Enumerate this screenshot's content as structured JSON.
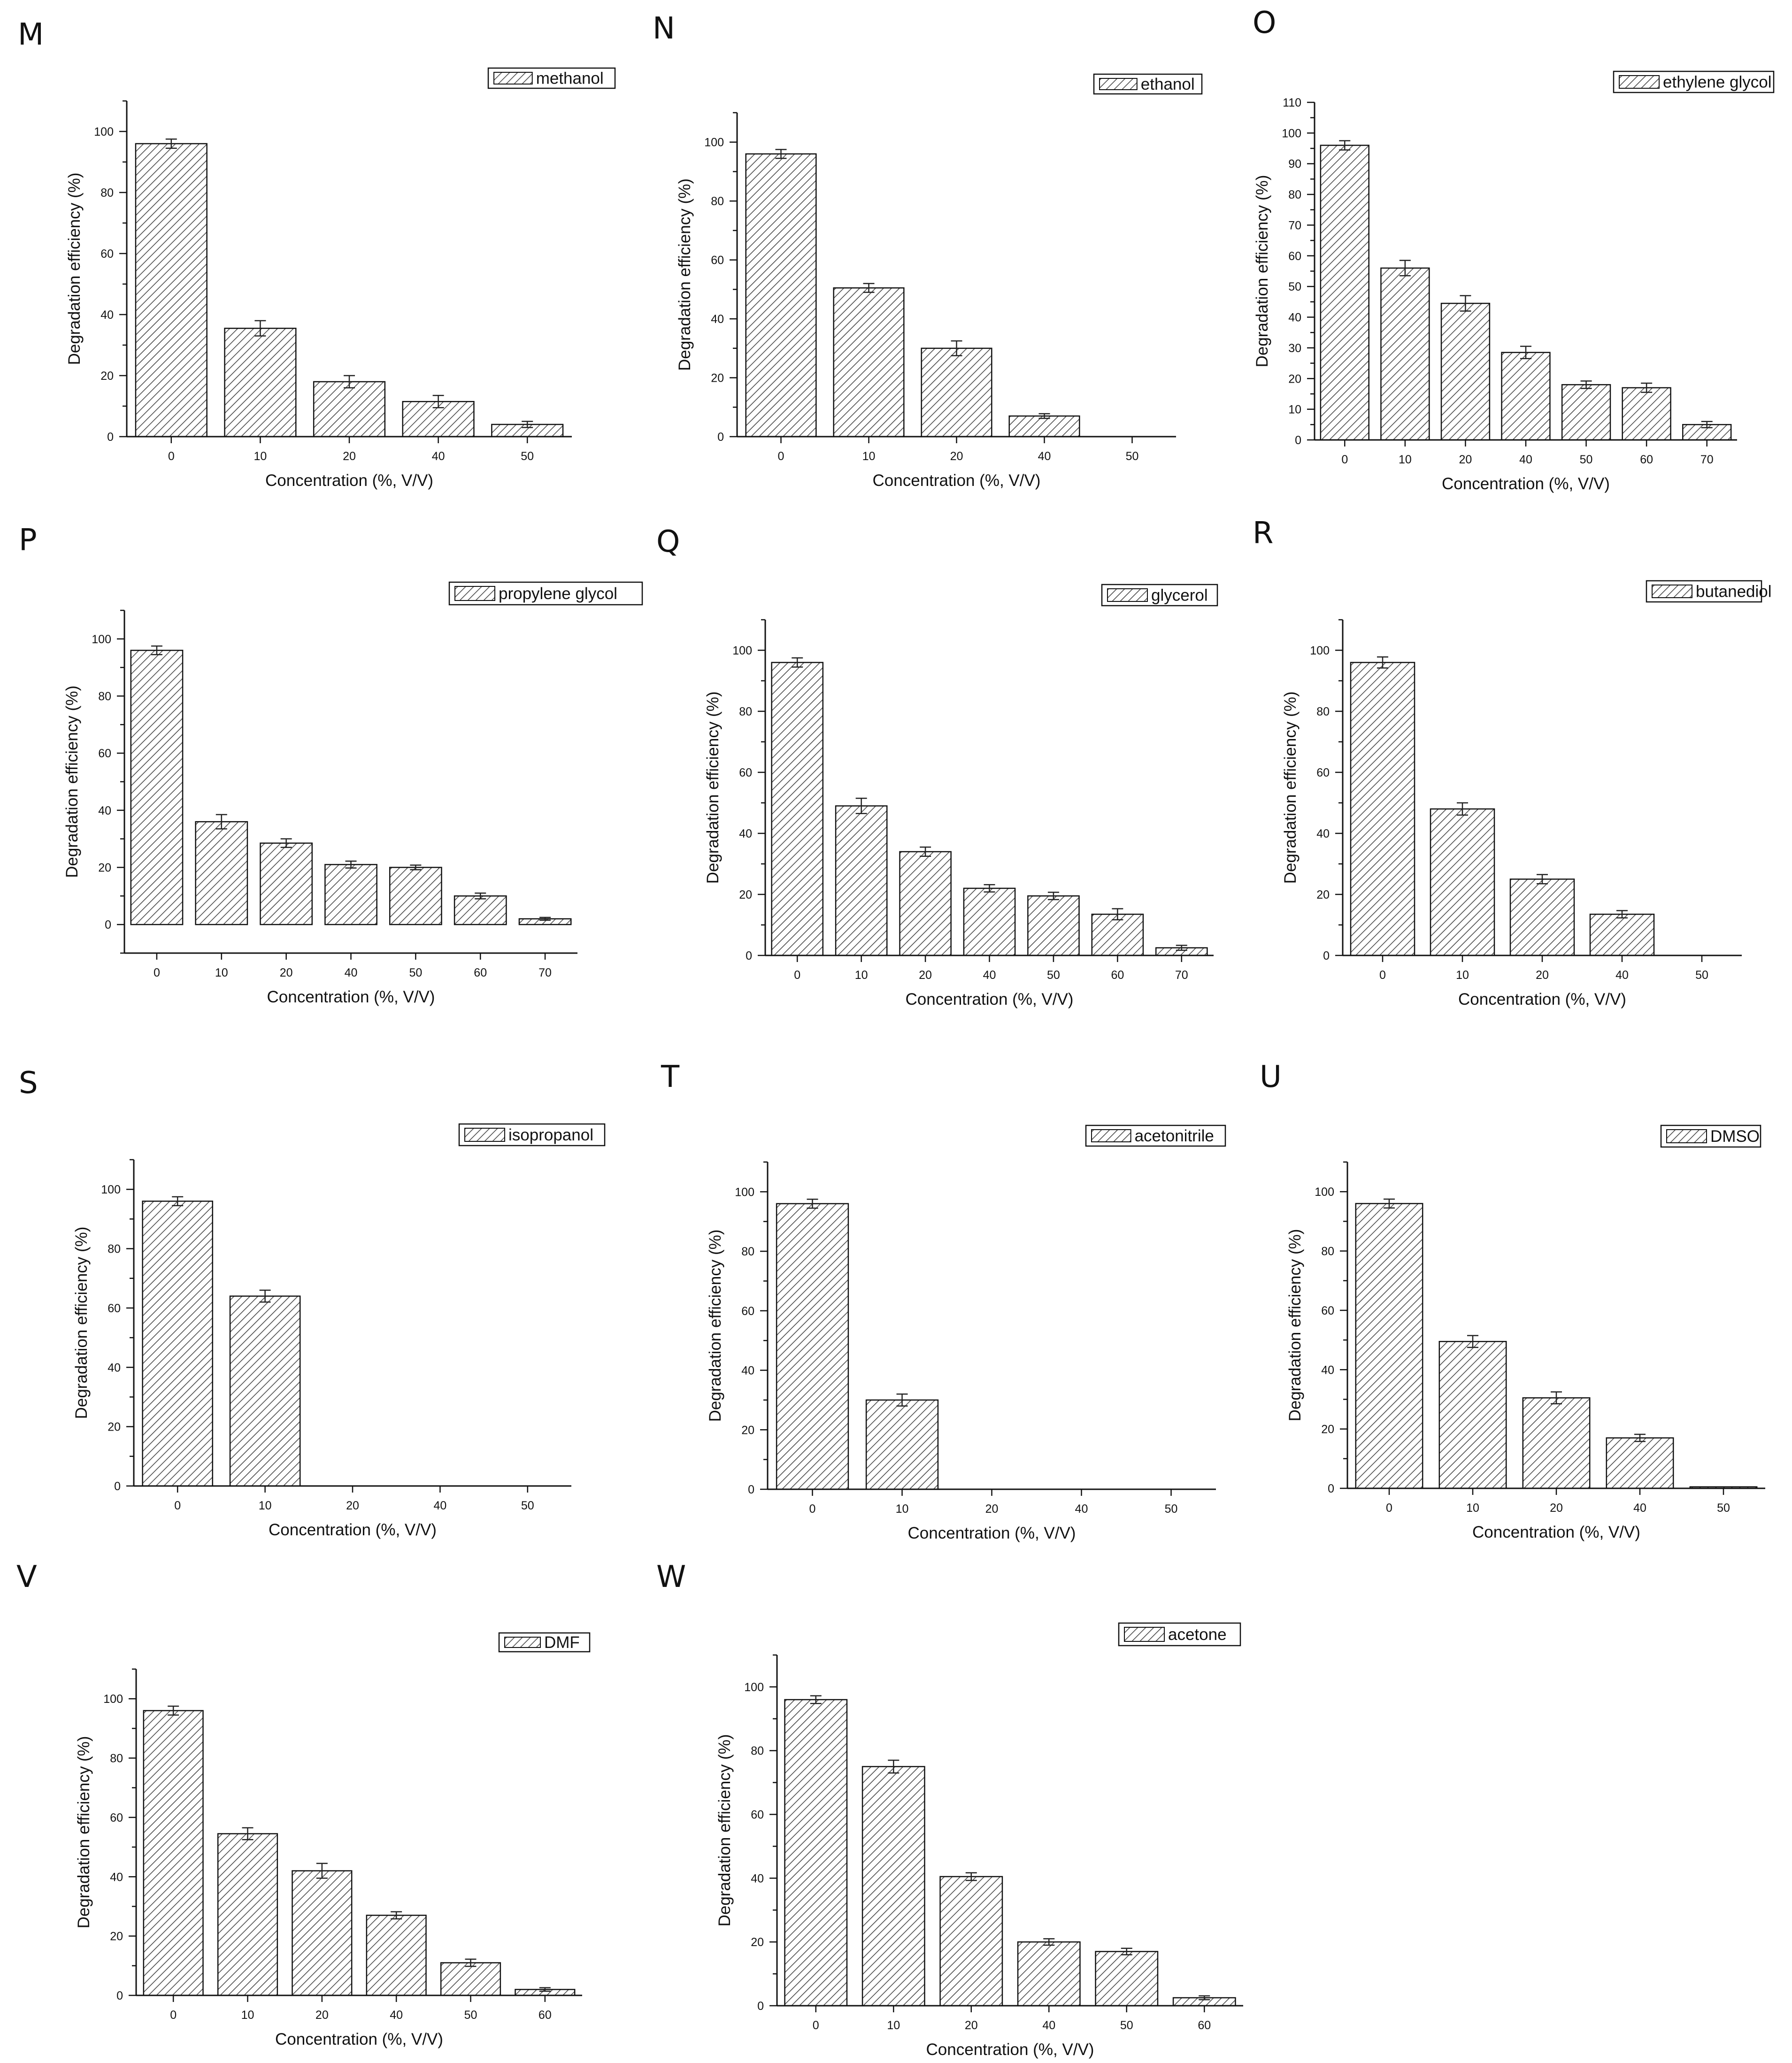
{
  "figure": {
    "description": "Degradation efficiency vs organic solvent concentration, panels M–W"
  },
  "colors": {
    "bar_fill": "#ffffff",
    "hatch": "#444444",
    "axis": "#111111",
    "error_bar": "#222222"
  },
  "chart_data": [
    {
      "panel": "M",
      "type": "bar",
      "legend": "methanol",
      "categories": [
        "0",
        "10",
        "20",
        "40",
        "50"
      ],
      "values": [
        96,
        35.5,
        18,
        11.5,
        4
      ],
      "errors": [
        1.5,
        2.5,
        2,
        2,
        1
      ],
      "xlabel": "Concentration (%, V/V)",
      "ylabel": "Degradation efficiency (%)",
      "ylim": [
        0,
        110
      ],
      "yticks": [
        "0",
        "20",
        "40",
        "60",
        "80",
        "100"
      ]
    },
    {
      "panel": "N",
      "type": "bar",
      "legend": "ethanol",
      "categories": [
        "0",
        "10",
        "20",
        "40",
        "50"
      ],
      "values": [
        96,
        50.5,
        30,
        7,
        0
      ],
      "errors": [
        1.5,
        1.5,
        2.5,
        0.8,
        0
      ],
      "xlabel": "Concentration (%, V/V)",
      "ylabel": "Degradation efficiency (%)",
      "ylim": [
        0,
        110
      ],
      "yticks": [
        "0",
        "20",
        "40",
        "60",
        "80",
        "100"
      ]
    },
    {
      "panel": "O",
      "type": "bar",
      "legend": "ethylene glycol",
      "categories": [
        "0",
        "10",
        "20",
        "40",
        "50",
        "60",
        "70"
      ],
      "values": [
        96,
        56,
        44.5,
        28.5,
        18,
        17,
        5
      ],
      "errors": [
        1.5,
        2.5,
        2.5,
        2,
        1.2,
        1.5,
        1
      ],
      "xlabel": "Concentration (%, V/V)",
      "ylabel": "Degradation efficiency (%)",
      "ylim": [
        0,
        110
      ],
      "yticks": [
        "0",
        "10",
        "20",
        "30",
        "40",
        "50",
        "60",
        "70",
        "80",
        "90",
        "100",
        "110"
      ]
    },
    {
      "panel": "P",
      "type": "bar",
      "legend": "propylene glycol",
      "categories": [
        "0",
        "10",
        "20",
        "40",
        "50",
        "60",
        "70"
      ],
      "values": [
        96,
        36,
        28.5,
        21,
        20,
        10,
        2
      ],
      "errors": [
        1.5,
        2.5,
        1.5,
        1.2,
        0.8,
        1,
        0.5
      ],
      "xlabel": "Concentration (%, V/V)",
      "ylabel": "Degradation efficiency (%)",
      "ylim": [
        -10,
        110
      ],
      "yticks": [
        "0",
        "20",
        "40",
        "60",
        "80",
        "100"
      ]
    },
    {
      "panel": "Q",
      "type": "bar",
      "legend": "glycerol",
      "categories": [
        "0",
        "10",
        "20",
        "40",
        "50",
        "60",
        "70"
      ],
      "values": [
        96,
        49,
        34,
        22,
        19.5,
        13.5,
        2.5
      ],
      "errors": [
        1.5,
        2.5,
        1.5,
        1.2,
        1.2,
        1.8,
        0.8
      ],
      "xlabel": "Concentration (%, V/V)",
      "ylabel": "Degradation efficiency (%)",
      "ylim": [
        0,
        110
      ],
      "yticks": [
        "0",
        "20",
        "40",
        "60",
        "80",
        "100"
      ]
    },
    {
      "panel": "R",
      "type": "bar",
      "legend": "butanediol",
      "categories": [
        "0",
        "10",
        "20",
        "40",
        "50"
      ],
      "values": [
        96,
        48,
        25,
        13.5,
        0
      ],
      "errors": [
        1.8,
        2,
        1.5,
        1.2,
        0
      ],
      "xlabel": "Concentration (%, V/V)",
      "ylabel": "Degradation efficiency (%)",
      "ylim": [
        0,
        110
      ],
      "yticks": [
        "0",
        "20",
        "40",
        "60",
        "80",
        "100"
      ]
    },
    {
      "panel": "S",
      "type": "bar",
      "legend": "isopropanol",
      "categories": [
        "0",
        "10",
        "20",
        "40",
        "50"
      ],
      "values": [
        96,
        64,
        0,
        0,
        0
      ],
      "errors": [
        1.5,
        2,
        0,
        0,
        0
      ],
      "xlabel": "Concentration (%, V/V)",
      "ylabel": "Degradation efficiency (%)",
      "ylim": [
        0,
        110
      ],
      "yticks": [
        "0",
        "20",
        "40",
        "60",
        "80",
        "100"
      ]
    },
    {
      "panel": "T",
      "type": "bar",
      "legend": "acetonitrile",
      "categories": [
        "0",
        "10",
        "20",
        "40",
        "50"
      ],
      "values": [
        96,
        30,
        0,
        0,
        0
      ],
      "errors": [
        1.5,
        2,
        0,
        0,
        0
      ],
      "xlabel": "Concentration (%, V/V)",
      "ylabel": "Degradation efficiency (%)",
      "ylim": [
        0,
        110
      ],
      "yticks": [
        "0",
        "20",
        "40",
        "60",
        "80",
        "100"
      ]
    },
    {
      "panel": "U",
      "type": "bar",
      "legend": "DMSO",
      "categories": [
        "0",
        "10",
        "20",
        "40",
        "50"
      ],
      "values": [
        96,
        49.5,
        30.5,
        17,
        0.5
      ],
      "errors": [
        1.5,
        2,
        2,
        1.2,
        0
      ],
      "xlabel": "Concentration (%, V/V)",
      "ylabel": "Degradation efficiency (%)",
      "ylim": [
        0,
        110
      ],
      "yticks": [
        "0",
        "20",
        "40",
        "60",
        "80",
        "100"
      ]
    },
    {
      "panel": "V",
      "type": "bar",
      "legend": "DMF",
      "categories": [
        "0",
        "10",
        "20",
        "40",
        "50",
        "60"
      ],
      "values": [
        96,
        54.5,
        42,
        27,
        11,
        2
      ],
      "errors": [
        1.5,
        2,
        2.5,
        1.2,
        1.2,
        0.6
      ],
      "xlabel": "Concentration (%,   V/V)",
      "ylabel": "Degradation efficiency (%)",
      "ylim": [
        0,
        110
      ],
      "yticks": [
        "0",
        "20",
        "40",
        "60",
        "80",
        "100"
      ]
    },
    {
      "panel": "W",
      "type": "bar",
      "legend": "acetone",
      "categories": [
        "0",
        "10",
        "20",
        "40",
        "50",
        "60"
      ],
      "values": [
        96,
        75,
        40.5,
        20,
        17,
        2.5
      ],
      "errors": [
        1.2,
        2,
        1.2,
        1,
        1,
        0.6
      ],
      "xlabel": "Concentration (%, V/V)",
      "ylabel": "Degradation efficiency (%)",
      "ylim": [
        0,
        110
      ],
      "yticks": [
        "0",
        "20",
        "40",
        "60",
        "80",
        "100"
      ]
    }
  ]
}
